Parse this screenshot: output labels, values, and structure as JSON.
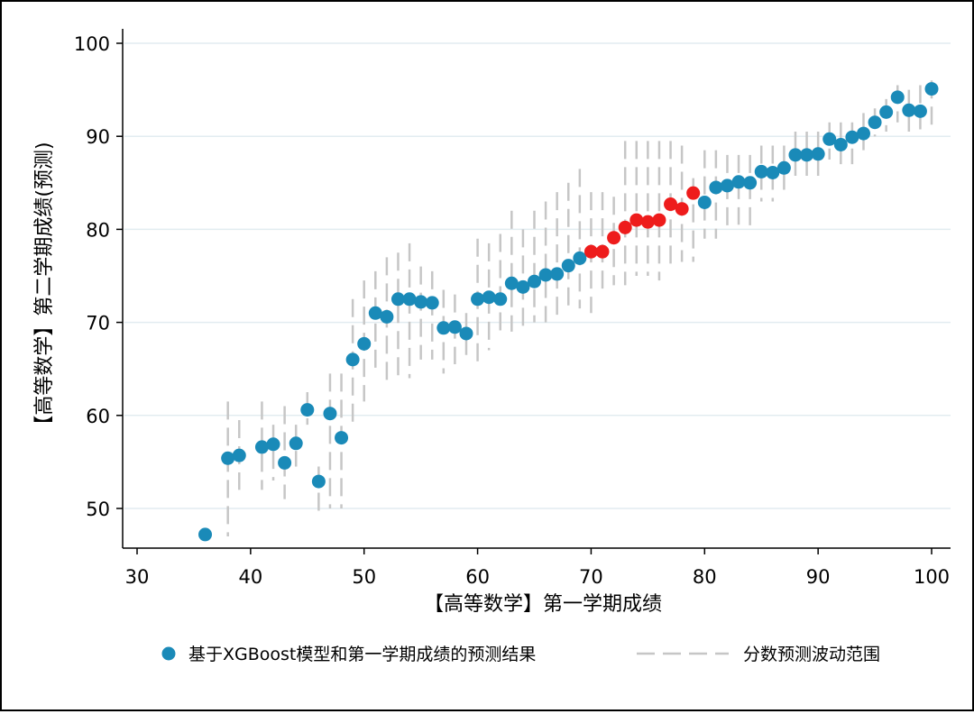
{
  "chart_data": {
    "type": "scatter",
    "xlabel": "【高等数学】第一学期成绩",
    "ylabel": "【高等数学】第二学期成绩(预测)",
    "xlim": [
      30,
      100
    ],
    "ylim": [
      43,
      103
    ],
    "xticks": [
      30,
      40,
      50,
      60,
      70,
      80,
      90,
      100
    ],
    "yticks": [
      50,
      60,
      70,
      80,
      90,
      100
    ],
    "grid": "horizontal",
    "legend_position": "bottom",
    "colors": {
      "point": "#1a8ab8",
      "highlight": "#ee1c1c",
      "range": "#c6c6c6",
      "grid": "#e2ecf0"
    },
    "series": [
      {
        "name": "基于XGBoost模型和第一学期成绩的预测结果",
        "points": [
          [
            36,
            47.2
          ],
          [
            38,
            55.4
          ],
          [
            39,
            55.7
          ],
          [
            41,
            56.6
          ],
          [
            42,
            56.9
          ],
          [
            43,
            54.9
          ],
          [
            44,
            57.0
          ],
          [
            45,
            60.6
          ],
          [
            46,
            52.9
          ],
          [
            47,
            60.2
          ],
          [
            48,
            57.6
          ],
          [
            49,
            66.0
          ],
          [
            50,
            67.7
          ],
          [
            51,
            71.0
          ],
          [
            52,
            70.6
          ],
          [
            53,
            72.5
          ],
          [
            54,
            72.5
          ],
          [
            55,
            72.2
          ],
          [
            56,
            72.1
          ],
          [
            57,
            69.4
          ],
          [
            58,
            69.5
          ],
          [
            59,
            68.8
          ],
          [
            60,
            72.5
          ],
          [
            61,
            72.7
          ],
          [
            62,
            72.5
          ],
          [
            63,
            74.2
          ],
          [
            64,
            73.8
          ],
          [
            65,
            74.4
          ],
          [
            66,
            75.1
          ],
          [
            67,
            75.2
          ],
          [
            68,
            76.1
          ],
          [
            69,
            76.9
          ],
          [
            70,
            77.6
          ],
          [
            71,
            77.6
          ],
          [
            72,
            79.1
          ],
          [
            73,
            80.2
          ],
          [
            74,
            81.0
          ],
          [
            75,
            80.8
          ],
          [
            76,
            81.0
          ],
          [
            77,
            82.7
          ],
          [
            78,
            82.2
          ],
          [
            79,
            83.9
          ],
          [
            80,
            82.9
          ],
          [
            81,
            84.5
          ],
          [
            82,
            84.7
          ],
          [
            83,
            85.1
          ],
          [
            84,
            85.0
          ],
          [
            85,
            86.2
          ],
          [
            86,
            86.1
          ],
          [
            87,
            86.6
          ],
          [
            88,
            88.0
          ],
          [
            89,
            88.0
          ],
          [
            90,
            88.1
          ],
          [
            91,
            89.7
          ],
          [
            92,
            89.1
          ],
          [
            93,
            89.9
          ],
          [
            94,
            90.3
          ],
          [
            95,
            91.5
          ],
          [
            96,
            92.6
          ],
          [
            97,
            94.2
          ],
          [
            98,
            92.8
          ],
          [
            99,
            92.7
          ],
          [
            100,
            95.1
          ]
        ],
        "highlight_x": [
          70,
          71,
          72,
          73,
          74,
          75,
          76,
          77,
          78,
          79
        ]
      },
      {
        "name": "分数预测波动范围",
        "ranges": [
          [
            38,
            47,
            61.5
          ],
          [
            39,
            52,
            59.5
          ],
          [
            41,
            52,
            61.5
          ],
          [
            42,
            53,
            59
          ],
          [
            43,
            51,
            61
          ],
          [
            44,
            54.5,
            59
          ],
          [
            45,
            59,
            62.5
          ],
          [
            46,
            49.5,
            54.5
          ],
          [
            47,
            50,
            64.5
          ],
          [
            48,
            50,
            64.5
          ],
          [
            49,
            58.5,
            72.5
          ],
          [
            50,
            61.5,
            74.5
          ],
          [
            51,
            64.5,
            75.5
          ],
          [
            52,
            63.5,
            77
          ],
          [
            53,
            63.5,
            77.5
          ],
          [
            54,
            64,
            78.5
          ],
          [
            55,
            66,
            76
          ],
          [
            56,
            66,
            75.5
          ],
          [
            57,
            64.5,
            73.5
          ],
          [
            58,
            65.5,
            73
          ],
          [
            59,
            66.5,
            71
          ],
          [
            60,
            65,
            79
          ],
          [
            61,
            67,
            78.5
          ],
          [
            62,
            68.5,
            79.5
          ],
          [
            63,
            69,
            82
          ],
          [
            64,
            69.5,
            80
          ],
          [
            65,
            70,
            82
          ],
          [
            66,
            70,
            83
          ],
          [
            67,
            70,
            84
          ],
          [
            68,
            71,
            85
          ],
          [
            69,
            71.5,
            86.5
          ],
          [
            70,
            71,
            84
          ],
          [
            71,
            73,
            84
          ],
          [
            72,
            74,
            83.5
          ],
          [
            73,
            74,
            89.5
          ],
          [
            74,
            75,
            89.5
          ],
          [
            75,
            75,
            89.5
          ],
          [
            76,
            74.5,
            89.5
          ],
          [
            77,
            76,
            89.5
          ],
          [
            78,
            76.5,
            89
          ],
          [
            79,
            76.5,
            85.5
          ],
          [
            80,
            79,
            88.5
          ],
          [
            81,
            79,
            88.5
          ],
          [
            82,
            80,
            88
          ],
          [
            83,
            80.5,
            88
          ],
          [
            84,
            80,
            88
          ],
          [
            85,
            83,
            89
          ],
          [
            86,
            83,
            89
          ],
          [
            87,
            83.5,
            89
          ],
          [
            88,
            85,
            90.5
          ],
          [
            89,
            85,
            90.5
          ],
          [
            90,
            85.5,
            90.5
          ],
          [
            91,
            87.5,
            91.5
          ],
          [
            92,
            87,
            91.5
          ],
          [
            93,
            87,
            91.5
          ],
          [
            94,
            88.5,
            92.5
          ],
          [
            95,
            90,
            93
          ],
          [
            96,
            90.5,
            94
          ],
          [
            97,
            91.5,
            95.5
          ],
          [
            98,
            90.5,
            95
          ],
          [
            99,
            90.5,
            95.5
          ],
          [
            100,
            91,
            96
          ]
        ]
      }
    ]
  }
}
